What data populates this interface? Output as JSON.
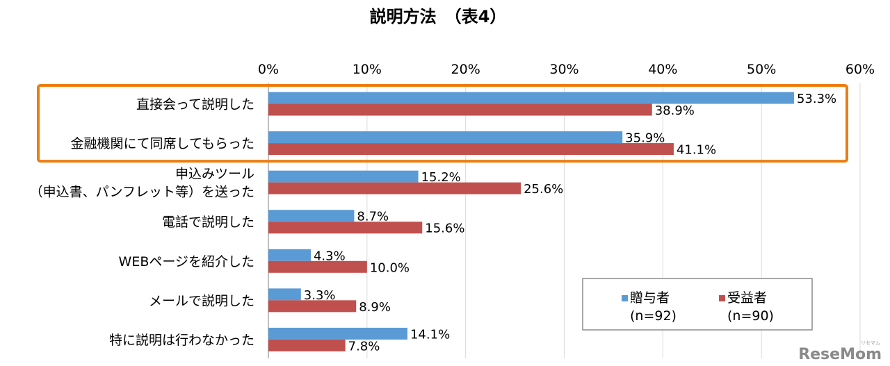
{
  "chart_data": {
    "type": "bar",
    "orientation": "horizontal",
    "title": "説明方法　（表4）",
    "xlim": [
      0,
      60
    ],
    "x_ticks": [
      "0%",
      "10%",
      "20%",
      "30%",
      "40%",
      "50%",
      "60%"
    ],
    "x_tick_values": [
      0,
      10,
      20,
      30,
      40,
      50,
      60
    ],
    "grid": true,
    "legend_position": "bottom-right",
    "categories": [
      [
        "直接会って説明した"
      ],
      [
        "金融機関にて同席してもらった"
      ],
      [
        "申込みツール",
        "（申込書、パンフレット等）を送った"
      ],
      [
        "電話で説明した"
      ],
      [
        "WEBページを紹介した"
      ],
      [
        "メールで説明した"
      ],
      [
        "特に説明は行わなかった"
      ]
    ],
    "series": [
      {
        "name": "贈与者",
        "sub": "(n=92)",
        "color": "#5b9bd5",
        "values": [
          53.3,
          35.9,
          15.2,
          8.7,
          4.3,
          3.3,
          14.1
        ],
        "labels": [
          "53.3%",
          "35.9%",
          "15.2%",
          "8.7%",
          "4.3%",
          "3.3%",
          "14.1%"
        ]
      },
      {
        "name": "受益者",
        "sub": "(n=90)",
        "color": "#c0504d",
        "values": [
          38.9,
          41.1,
          25.6,
          15.6,
          10.0,
          8.9,
          7.8
        ],
        "labels": [
          "38.9%",
          "41.1%",
          "25.6%",
          "15.6%",
          "10.0%",
          "8.9%",
          "7.8%"
        ]
      }
    ],
    "highlight": {
      "categories": [
        0,
        1
      ],
      "color": "#ed7d10"
    }
  },
  "watermark": "ReseMom",
  "watermark_sub": "リセマム"
}
